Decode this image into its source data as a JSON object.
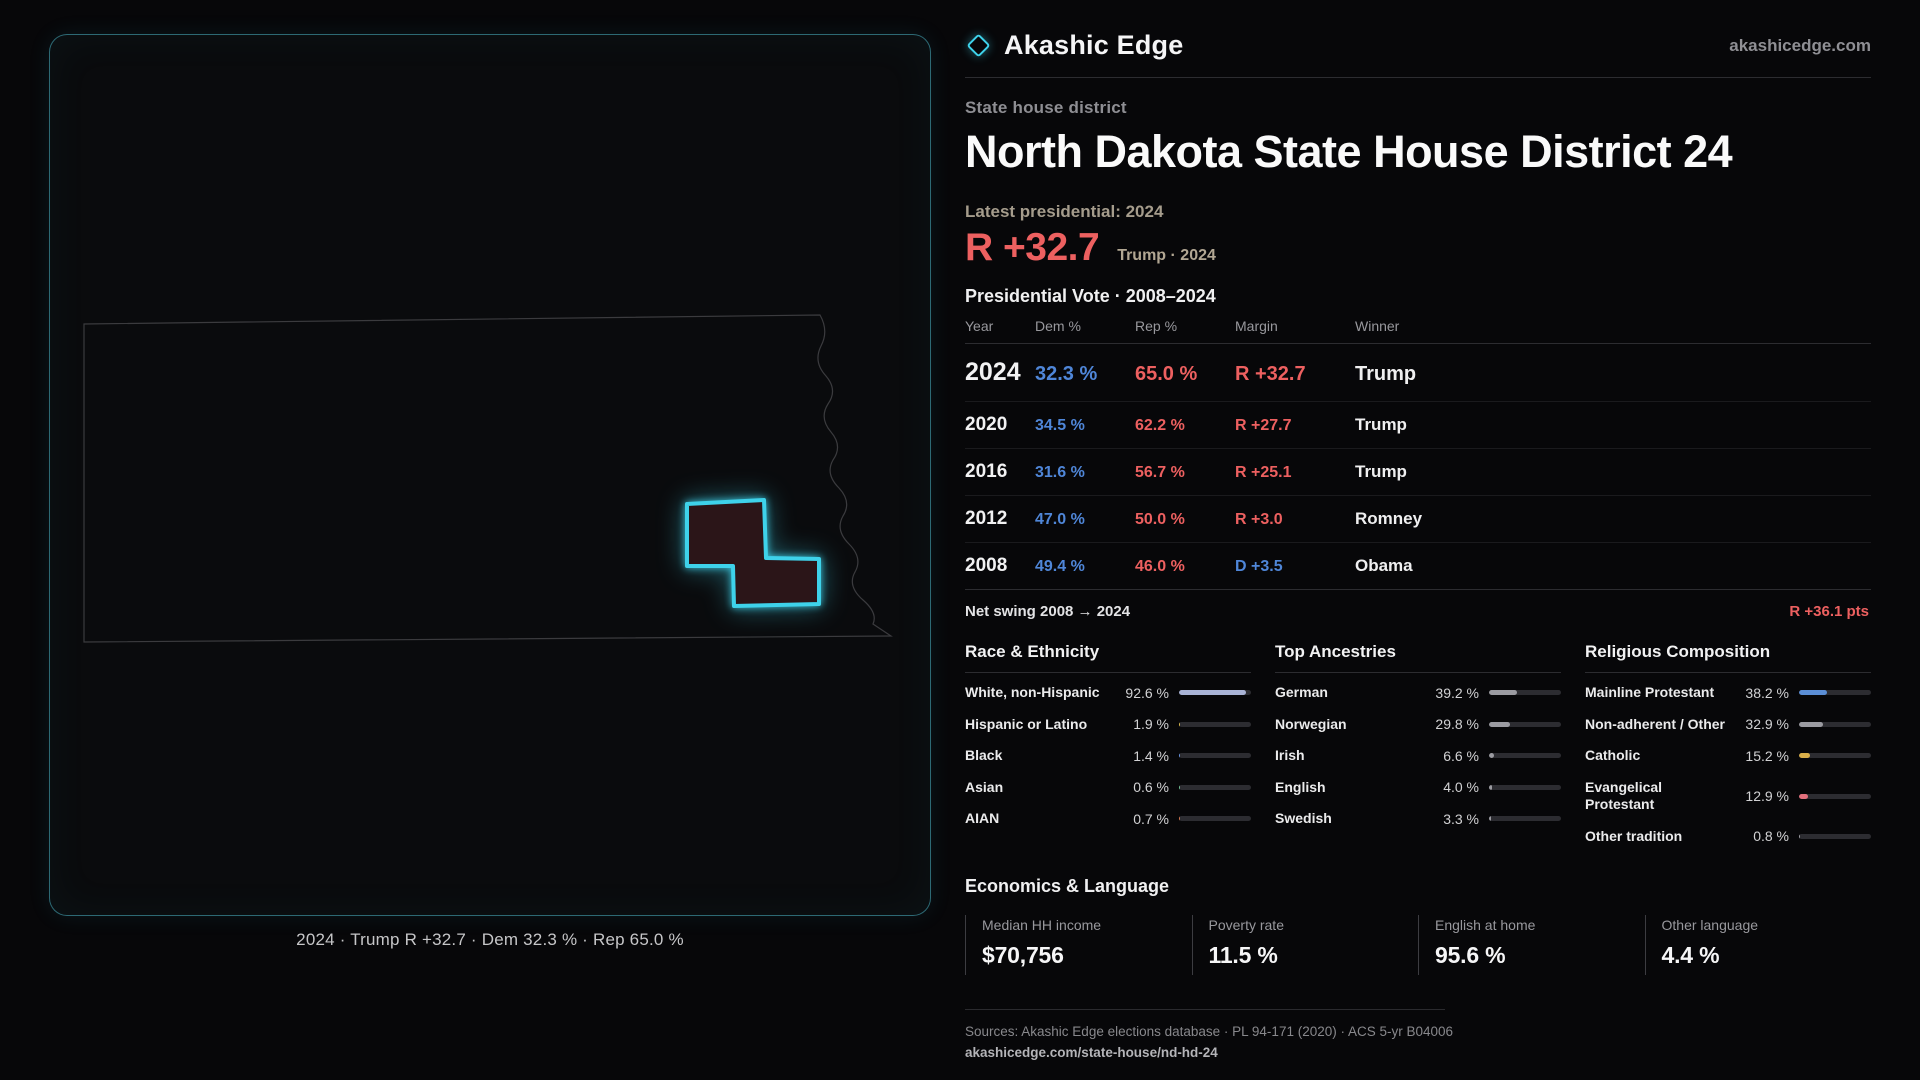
{
  "colors": {
    "accent": "#3ed2ea",
    "dem": "#4f86d8",
    "rep": "#ed6060"
  },
  "brand": {
    "name": "Akashic Edge",
    "domain": "akashicedge.com"
  },
  "header": {
    "kicker": "State house district",
    "title": "North Dakota State House District 24"
  },
  "latest": {
    "label": "Latest presidential: 2024",
    "margin": "R +32.7",
    "context": "Trump · 2024"
  },
  "map": {
    "caption": "2024 · Trump R +32.7 · Dem 32.3 % · Rep 65.0 %",
    "district_color": "#3ed2ea",
    "district_fill": "#2b1518"
  },
  "vote_table": {
    "title": "Presidential Vote · 2008–2024",
    "columns": [
      "Year",
      "Dem %",
      "Rep %",
      "Margin",
      "Winner"
    ],
    "rows": [
      {
        "year": "2024",
        "dem": "32.3 %",
        "rep": "65.0 %",
        "margin": "R +32.7",
        "winner": "Trump",
        "emphasis": true
      },
      {
        "year": "2020",
        "dem": "34.5 %",
        "rep": "62.2 %",
        "margin": "R +27.7",
        "winner": "Trump",
        "emphasis": false
      },
      {
        "year": "2016",
        "dem": "31.6 %",
        "rep": "56.7 %",
        "margin": "R +25.1",
        "winner": "Trump",
        "emphasis": false
      },
      {
        "year": "2012",
        "dem": "47.0 %",
        "rep": "50.0 %",
        "margin": "R +3.0",
        "winner": "Romney",
        "emphasis": false
      },
      {
        "year": "2008",
        "dem": "49.4 %",
        "rep": "46.0 %",
        "margin": "D +3.5",
        "winner": "Obama",
        "emphasis": false
      }
    ],
    "net_swing_label": "Net swing 2008 → 2024",
    "net_swing_value": "R +36.1 pts"
  },
  "demographics": {
    "race": {
      "title": "Race & Ethnicity",
      "rows": [
        {
          "label": "White, non-Hispanic",
          "value": "92.6 %",
          "pct": 92.6,
          "color": "#a9b3d6"
        },
        {
          "label": "Hispanic or Latino",
          "value": "1.9 %",
          "pct": 1.9,
          "color": "#d9b84e"
        },
        {
          "label": "Black",
          "value": "1.4 %",
          "pct": 1.4,
          "color": "#6a93dc"
        },
        {
          "label": "Asian",
          "value": "0.6 %",
          "pct": 0.6,
          "color": "#6fbf93"
        },
        {
          "label": "AIAN",
          "value": "0.7 %",
          "pct": 0.7,
          "color": "#d4764f"
        }
      ]
    },
    "ancestries": {
      "title": "Top Ancestries",
      "rows": [
        {
          "label": "German",
          "value": "39.2 %",
          "pct": 39.2,
          "color": "#9b9ba1"
        },
        {
          "label": "Norwegian",
          "value": "29.8 %",
          "pct": 29.8,
          "color": "#9b9ba1"
        },
        {
          "label": "Irish",
          "value": "6.6 %",
          "pct": 6.6,
          "color": "#9b9ba1"
        },
        {
          "label": "English",
          "value": "4.0 %",
          "pct": 4.0,
          "color": "#9b9ba1"
        },
        {
          "label": "Swedish",
          "value": "3.3 %",
          "pct": 3.3,
          "color": "#9b9ba1"
        }
      ]
    },
    "religion": {
      "title": "Religious Composition",
      "rows": [
        {
          "label": "Mainline Protestant",
          "value": "38.2 %",
          "pct": 38.2,
          "color": "#5b8ed6"
        },
        {
          "label": "Non-adherent / Other",
          "value": "32.9 %",
          "pct": 32.9,
          "color": "#9b9ba1"
        },
        {
          "label": "Catholic",
          "value": "15.2 %",
          "pct": 15.2,
          "color": "#d9ae49"
        },
        {
          "label": "Evangelical Protestant",
          "value": "12.9 %",
          "pct": 12.9,
          "color": "#e2707d"
        },
        {
          "label": "Other tradition",
          "value": "0.8 %",
          "pct": 0.8,
          "color": "#9b9ba1"
        }
      ]
    }
  },
  "economics": {
    "title": "Economics & Language",
    "stats": [
      {
        "label": "Median HH income",
        "value": "$70,756"
      },
      {
        "label": "Poverty rate",
        "value": "11.5 %"
      },
      {
        "label": "English at home",
        "value": "95.6 %"
      },
      {
        "label": "Other language",
        "value": "4.4 %"
      }
    ]
  },
  "footer": {
    "sources": "Sources: Akashic Edge elections database · PL 94-171 (2020) · ACS 5-yr B04006",
    "permalink": "akashicedge.com/state-house/nd-hd-24"
  }
}
